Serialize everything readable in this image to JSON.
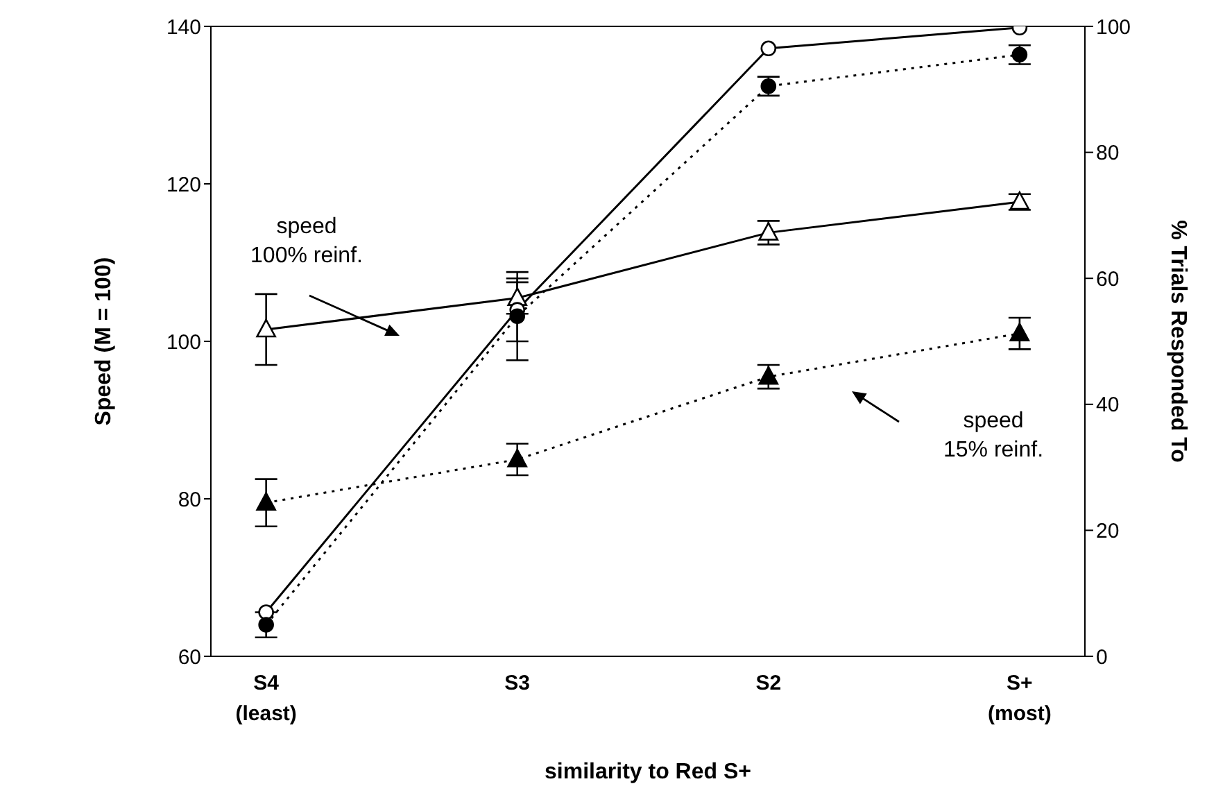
{
  "chart_data": {
    "type": "line",
    "xlabel": "similarity to Red S+",
    "ylabel": "Speed (M = 100)",
    "y2label": "% Trials Responded To",
    "categories": [
      "S4\n(least)",
      "S3",
      "S2",
      "S+\n(most)"
    ],
    "ylim": [
      60,
      140
    ],
    "yticks": [
      60,
      80,
      100,
      120,
      140
    ],
    "y2lim": [
      0,
      100
    ],
    "y2ticks": [
      0,
      20,
      40,
      60,
      80,
      100
    ],
    "grid": false,
    "legend": false,
    "series": [
      {
        "name": "speed 100% reinf.",
        "color": "#000000",
        "marker": "triangle",
        "line_style": "solid",
        "values": [
          101.5,
          105.5,
          113.8,
          117.7
        ],
        "errors": [
          4.5,
          2,
          1.5,
          1
        ]
      },
      {
        "name": "speed 15% reinf.",
        "color": "#000000",
        "marker": "triangle",
        "line_style": "dotted",
        "values": [
          79.5,
          85,
          95.5,
          101
        ],
        "errors": [
          3,
          2,
          1.5,
          2
        ]
      },
      {
        "color": "#000000",
        "marker": "circle",
        "line_style": "solid",
        "axis": "y2",
        "values": [
          7,
          55,
          96.5,
          99.8
        ],
        "errors": [
          null,
          5,
          null,
          null
        ]
      },
      {
        "color": "#000000",
        "marker": "circle",
        "line_style": "dotted",
        "axis": "y2",
        "values": [
          5,
          54,
          90.5,
          95.5
        ],
        "errors": [
          2,
          7,
          1.5,
          1.5
        ]
      }
    ]
  }
}
